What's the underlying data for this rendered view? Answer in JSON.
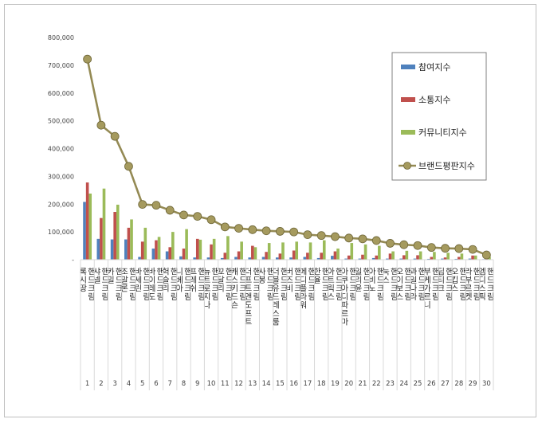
{
  "chart_data": {
    "type": "bar",
    "title": "",
    "xlabel": "",
    "ylabel": "",
    "ylim": [
      0,
      800000
    ],
    "yticks": [
      "-",
      "100,000",
      "200,000",
      "300,000",
      "400,000",
      "500,000",
      "600,000",
      "700,000",
      "800,000"
    ],
    "grid": false,
    "legend_position": "top-right",
    "colors": {
      "participation": "#4f81bd",
      "communication": "#c0504d",
      "community": "#9bbb59",
      "brand": "#948a54"
    },
    "categories": [
      "록시땅 핸드크림",
      "샤넬 핸드크림",
      "카밀 핸드크림",
      "조말론 핸드크림",
      "바세린 핸드크림",
      "바이레도 핸드크림",
      "헉슬리 핸드크림",
      "니베아 핸드크림",
      "프레쉬 핸드크림",
      "뉴트로지나 핸드크림",
      "꼬달리 핸드크림",
      "캐스키드슨 핸드크림",
      "더프트앤도프트 핸드크림",
      "사봉 핸드크림",
      "더블유드레스룸 핸드크림",
      "버즈비 핸드크림",
      "메디플라워 핸드크림",
      "한율 핸드크림",
      "아트릭스 핸드크림",
      "아쿠아디파르마 핸드크림",
      "일리윤 핸드크림",
      "아비노 핸드크림",
      "눅스 핸드크림",
      "오이보스 핸드크림",
      "과일나라 핸드크림",
      "부케가르니 핸드크림",
      "딥티크 핸드크림",
      "오킵스 핸드크림",
      "라부르켓 핸드크림",
      "엠디스픽 핸드크림"
    ],
    "index_labels": [
      "1",
      "2",
      "3",
      "4",
      "5",
      "6",
      "7",
      "8",
      "9",
      "10",
      "11",
      "12",
      "13",
      "14",
      "15",
      "16",
      "17",
      "18",
      "19",
      "20",
      "21",
      "22",
      "23",
      "24",
      "25",
      "26",
      "27",
      "28",
      "29",
      "30"
    ],
    "series": [
      {
        "name": "참여지수",
        "type": "bar",
        "values": [
          208000,
          75000,
          73000,
          73000,
          10000,
          40000,
          30000,
          12000,
          8000,
          8000,
          6000,
          10000,
          8000,
          10000,
          8000,
          8000,
          10000,
          6000,
          14000,
          4000,
          4000,
          6000,
          4000,
          4000,
          4000,
          3000,
          4000,
          3000,
          4000,
          2000
        ]
      },
      {
        "name": "소통지수",
        "type": "bar",
        "values": [
          278000,
          150000,
          172000,
          115000,
          65000,
          70000,
          45000,
          40000,
          75000,
          55000,
          25000,
          30000,
          50000,
          28000,
          22000,
          33000,
          25000,
          25000,
          30000,
          15000,
          18000,
          15000,
          22000,
          16000,
          16000,
          10000,
          8000,
          10000,
          15000,
          5000
        ]
      },
      {
        "name": "커뮤니티지수",
        "type": "bar",
        "values": [
          238000,
          256000,
          198000,
          145000,
          115000,
          82000,
          100000,
          110000,
          72000,
          75000,
          85000,
          65000,
          45000,
          60000,
          62000,
          65000,
          62000,
          70000,
          40000,
          60000,
          55000,
          50000,
          30000,
          32000,
          30000,
          28000,
          25000,
          22000,
          15000,
          10000
        ]
      },
      {
        "name": "브랜드평판지수",
        "type": "line",
        "values": [
          722000,
          484000,
          444000,
          336000,
          199000,
          196000,
          178000,
          161000,
          156000,
          144000,
          118000,
          113000,
          108000,
          104000,
          102000,
          100000,
          90000,
          87000,
          83000,
          78000,
          75000,
          69000,
          59000,
          54000,
          51000,
          44000,
          41000,
          40000,
          37000,
          17000
        ]
      }
    ]
  }
}
